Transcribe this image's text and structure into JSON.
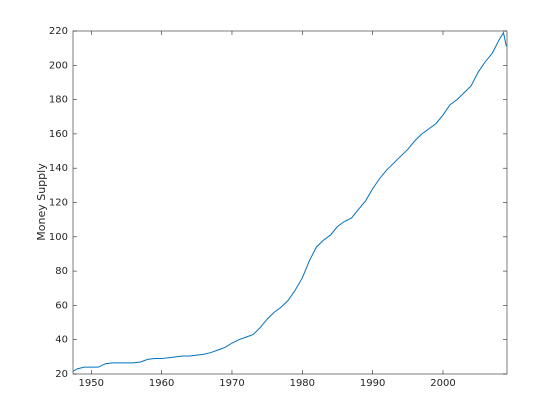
{
  "chart_data": {
    "type": "line",
    "y_label": "Money Supply",
    "x": [
      1947.4,
      1948,
      1949,
      1950,
      1951,
      1952,
      1953,
      1954,
      1955,
      1956,
      1957,
      1958,
      1959,
      1960,
      1961,
      1962,
      1963,
      1964,
      1965,
      1966,
      1967,
      1968,
      1969,
      1970,
      1971,
      1972,
      1973,
      1974,
      1975,
      1976,
      1977,
      1978,
      1979,
      1980,
      1981,
      1982,
      1983,
      1984,
      1985,
      1986,
      1987,
      1988,
      1989,
      1990,
      1991,
      1992,
      1993,
      1994,
      1995,
      1996,
      1997,
      1998,
      1999,
      2000,
      2001,
      2002,
      2003,
      2004,
      2005,
      2006,
      2007,
      2008,
      2008.6,
      2009
    ],
    "series": [
      {
        "color": "#0072bd",
        "values": [
          21.5,
          23,
          24,
          24,
          24,
          26,
          26.5,
          26.5,
          26.5,
          26.5,
          27,
          28.5,
          29,
          29,
          29.5,
          30,
          30.5,
          30.5,
          31,
          31.5,
          32.5,
          34,
          35.5,
          38,
          40,
          41.5,
          43,
          47,
          52,
          56,
          59,
          63,
          69,
          76,
          86,
          94,
          98,
          101,
          106,
          109,
          111,
          116,
          121,
          128,
          134,
          139,
          143,
          147,
          151,
          156,
          160,
          163,
          166,
          171,
          177,
          180,
          184,
          188,
          196,
          202,
          207,
          215,
          219,
          211
        ]
      }
    ],
    "xlim": [
      1947.4,
      2009.1
    ],
    "xticks": [
      1950,
      1960,
      1970,
      1980,
      1990,
      2000
    ],
    "ylim": [
      20,
      220
    ],
    "yticks": [
      20,
      40,
      60,
      80,
      100,
      120,
      140,
      160,
      180,
      200,
      220
    ]
  }
}
